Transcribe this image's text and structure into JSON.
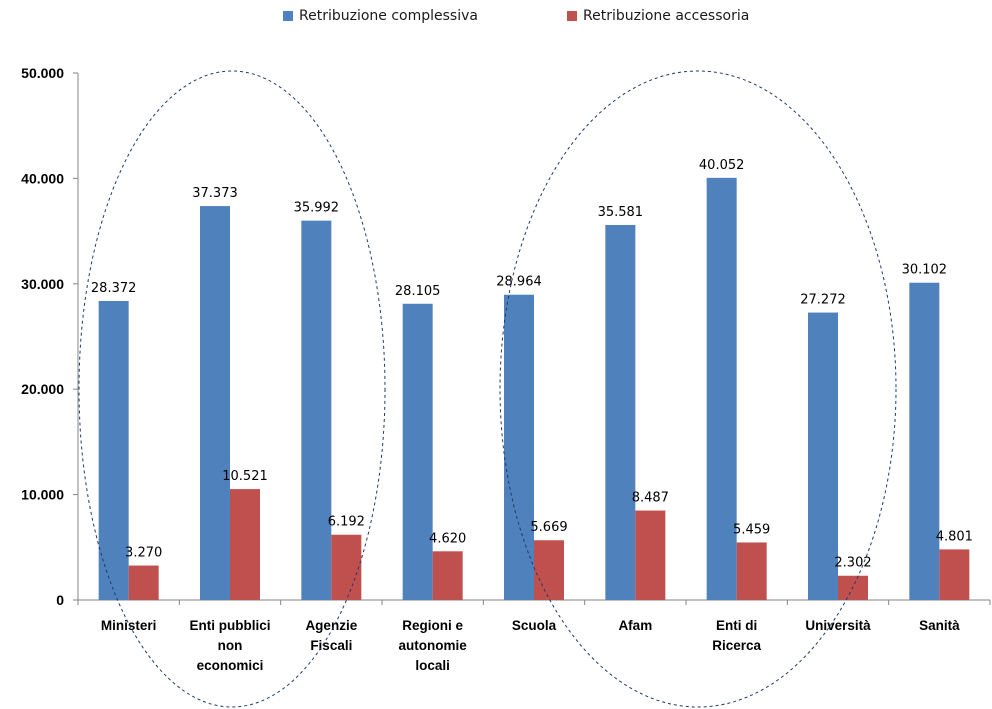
{
  "chart_data": {
    "type": "bar",
    "title": "",
    "xlabel": "",
    "ylabel": "",
    "ylim": [
      0,
      50000
    ],
    "y_ticks": [
      "0",
      "10.000",
      "20.000",
      "30.000",
      "40.000",
      "50.000"
    ],
    "grid": false,
    "legend_position": "top",
    "categories": [
      [
        "Ministeri"
      ],
      [
        "Enti pubblici",
        "non",
        "economici"
      ],
      [
        "Agenzie",
        "Fiscali"
      ],
      [
        "Regioni e",
        "autonomie",
        "locali"
      ],
      [
        "Scuola"
      ],
      [
        "Afam"
      ],
      [
        "Enti di",
        "Ricerca"
      ],
      [
        "Università"
      ],
      [
        "Sanità"
      ]
    ],
    "series": [
      {
        "name": "Retribuzione complessiva",
        "color": "#4f81bd",
        "values": [
          28372,
          37373,
          35992,
          28105,
          28964,
          35581,
          40052,
          27272,
          30102
        ],
        "labels": [
          "28.372",
          "37.373",
          "35.992",
          "28.105",
          "28.964",
          "35.581",
          "40.052",
          "27.272",
          "30.102"
        ]
      },
      {
        "name": "Retribuzione accessoria",
        "color": "#c0504d",
        "values": [
          3270,
          10521,
          6192,
          4620,
          5669,
          8487,
          5459,
          2302,
          4801
        ],
        "labels": [
          "3.270",
          "10.521",
          "6.192",
          "4.620",
          "5.669",
          "8.487",
          "5.459",
          "2.302",
          "4.801"
        ]
      }
    ],
    "annotations": [
      {
        "type": "dashed-ellipse",
        "groups": [
          "Ministeri",
          "Enti pubblici non economici",
          "Agenzie Fiscali"
        ],
        "color": "#1f3a68"
      },
      {
        "type": "dashed-ellipse",
        "groups": [
          "Scuola",
          "Afam",
          "Enti di Ricerca",
          "Università"
        ],
        "color": "#1f3a68"
      }
    ]
  }
}
